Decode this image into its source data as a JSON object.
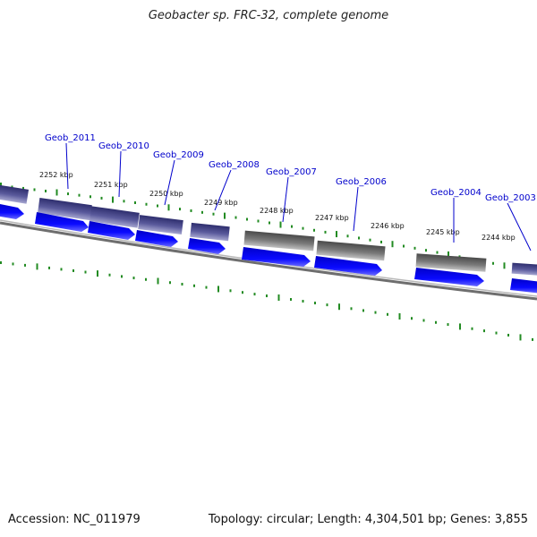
{
  "title": "Geobacter sp. FRC-32, complete genome",
  "footer": {
    "accession": "Accession: NC_011979",
    "summary": "Topology: circular; Length: 4,304,501 bp; Genes: 3,855"
  },
  "colors": {
    "gene_label": "#0000cc",
    "cds_arrow": "#0a0af0",
    "feature_purple": "#4a4a8c",
    "feature_gray": "#6e6e6e",
    "tick_green": "#228b22",
    "backbone": "#7a7a7a"
  },
  "ruler_labels": [
    "2252 kbp",
    "2251 kbp",
    "2250 kbp",
    "2249 kbp",
    "2248 kbp",
    "2247 kbp",
    "2246 kbp",
    "2245 kbp",
    "2244 kbp"
  ],
  "genes": [
    "Geob_2011",
    "Geob_2010",
    "Geob_2009",
    "Geob_2008",
    "Geob_2007",
    "Geob_2006",
    "Geob_2004",
    "Geob_2003"
  ]
}
